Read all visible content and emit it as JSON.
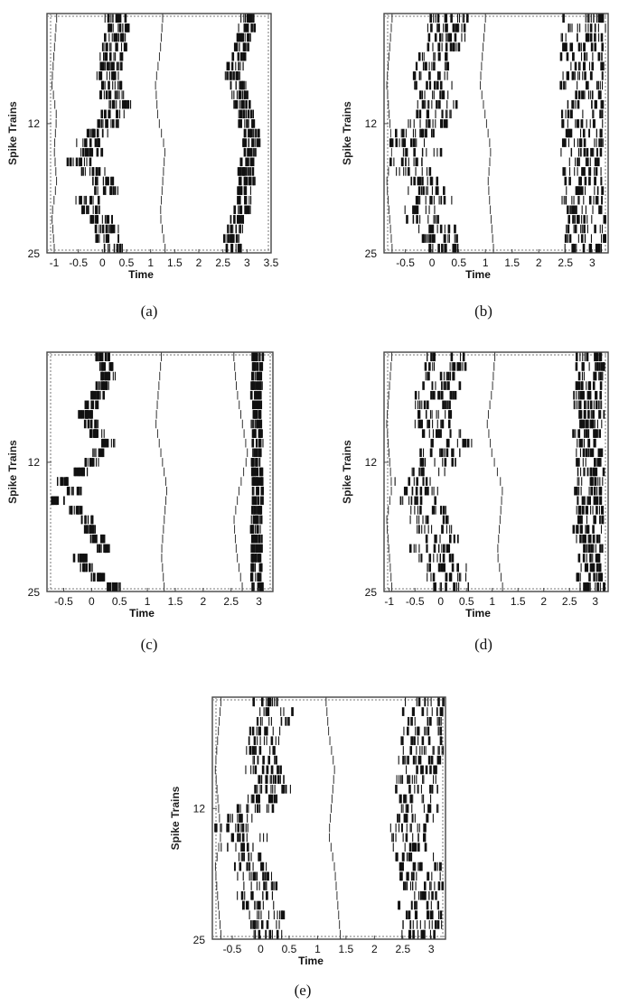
{
  "chart_data": [
    {
      "type": "scatter",
      "panel": "(a)",
      "ylabel": "Spike Trains",
      "xlabel": "Time",
      "xlim": [
        -1.15,
        3.5
      ],
      "ylim": [
        0,
        25
      ],
      "xticks": [
        "-1",
        "-0.5",
        "0",
        "0.5",
        "1",
        "1.5",
        "2",
        "2.5",
        "3",
        "3.5"
      ],
      "yticks": [
        "12",
        "25"
      ],
      "trains": 25,
      "bursts": [
        {
          "center": [
            0.3,
            0.3,
            0.25,
            0.25,
            0.2,
            0.15,
            0.1,
            0.15,
            0.2,
            0.35,
            0.2,
            0.1,
            -0.1,
            -0.3,
            -0.2,
            -0.5,
            -0.2,
            0.0,
            0.1,
            -0.3,
            -0.2,
            0.0,
            0.1,
            0.1,
            0.2
          ],
          "width": 0.5,
          "density": 0.8
        },
        {
          "center": [
            3.0,
            3.0,
            2.9,
            2.9,
            2.8,
            2.75,
            2.7,
            2.8,
            2.85,
            2.9,
            3.0,
            3.0,
            3.1,
            3.1,
            3.05,
            3.0,
            3.0,
            3.0,
            2.95,
            2.95,
            2.9,
            2.8,
            2.75,
            2.7,
            2.75
          ],
          "width": 0.35,
          "density": 0.75
        }
      ],
      "curves": [
        {
          "x": [
            -0.95,
            -1.0,
            -1.05,
            -0.95,
            -1.0,
            -0.95,
            -1.05,
            -1.0
          ]
        },
        {
          "x": [
            1.25,
            1.2,
            1.1,
            1.15,
            1.3,
            1.25,
            1.2,
            1.3
          ]
        }
      ]
    },
    {
      "type": "scatter",
      "panel": "(b)",
      "ylabel": "Spike Trains",
      "xlabel": "Time",
      "xlim": [
        -0.9,
        3.3
      ],
      "ylim": [
        0,
        25
      ],
      "xticks": [
        "-0.5",
        "0",
        "0.5",
        "1",
        "1.5",
        "2",
        "2.5",
        "3"
      ],
      "yticks": [
        "12",
        "25"
      ],
      "trains": 25,
      "bursts": [
        {
          "center": [
            0.3,
            0.25,
            0.3,
            0.2,
            0.1,
            0.05,
            0.0,
            0.0,
            0.05,
            0.1,
            0.0,
            -0.1,
            -0.3,
            -0.5,
            -0.2,
            -0.4,
            -0.3,
            -0.2,
            -0.1,
            0.0,
            -0.3,
            -0.1,
            0.1,
            0.1,
            0.2
          ],
          "width": 0.75,
          "density": 0.7
        },
        {
          "center": [
            2.85,
            2.85,
            2.8,
            2.8,
            2.8,
            2.85,
            2.85,
            2.8,
            2.8,
            2.85,
            2.8,
            2.8,
            2.85,
            2.85,
            2.8,
            2.8,
            2.85,
            2.85,
            2.8,
            2.8,
            2.85,
            2.85,
            2.8,
            2.85,
            2.85
          ],
          "width": 0.8,
          "density": 0.8
        }
      ],
      "curves": [
        {
          "x": [
            -0.75,
            -0.8,
            -0.85,
            -0.8,
            -0.75,
            -0.85,
            -0.8,
            -0.75
          ]
        },
        {
          "x": [
            1.0,
            0.95,
            0.9,
            1.0,
            1.1,
            1.05,
            1.1,
            1.15
          ]
        }
      ]
    },
    {
      "type": "scatter",
      "panel": "(c)",
      "ylabel": "Spike Trains",
      "xlabel": "Time",
      "xlim": [
        -0.8,
        3.25
      ],
      "ylim": [
        0,
        25
      ],
      "xticks": [
        "-0.5",
        "0",
        "0.5",
        "1",
        "1.5",
        "2",
        "2.5",
        "3"
      ],
      "yticks": [
        "12",
        "25"
      ],
      "trains": 25,
      "bursts": [
        {
          "center": [
            0.2,
            0.25,
            0.3,
            0.2,
            0.1,
            0.0,
            -0.1,
            0.0,
            0.1,
            0.3,
            0.1,
            0.0,
            -0.2,
            -0.5,
            -0.3,
            -0.6,
            -0.3,
            -0.1,
            0.0,
            0.1,
            0.2,
            -0.2,
            -0.1,
            0.1,
            0.4
          ],
          "width": 0.25,
          "density": 0.8
        },
        {
          "center": [
            2.98,
            2.98,
            2.97,
            2.97,
            2.96,
            2.96,
            2.95,
            2.96,
            2.97,
            2.98,
            2.98,
            2.97,
            2.97,
            2.97,
            2.98,
            2.98,
            2.97,
            2.96,
            2.95,
            2.96,
            2.97,
            2.97,
            2.96,
            2.96,
            2.97
          ],
          "width": 0.2,
          "density": 0.9
        }
      ],
      "curves": [
        {
          "x": [
            1.25,
            1.2,
            1.15,
            1.25,
            1.35,
            1.3,
            1.25,
            1.3
          ]
        },
        {
          "x": [
            2.55,
            2.6,
            2.7,
            2.8,
            2.65,
            2.55,
            2.6,
            2.7
          ]
        }
      ]
    },
    {
      "type": "scatter",
      "panel": "(d)",
      "ylabel": "Spike Trains",
      "xlabel": "Time",
      "xlim": [
        -1.1,
        3.25
      ],
      "ylim": [
        0,
        25
      ],
      "xticks": [
        "-1",
        "-0.5",
        "0",
        "0.5",
        "1",
        "1.5",
        "2",
        "2.5",
        "3"
      ],
      "yticks": [
        "12",
        "25"
      ],
      "trains": 25,
      "bursts": [
        {
          "center": [
            0.1,
            0.1,
            0.1,
            0.0,
            -0.1,
            -0.1,
            -0.2,
            -0.1,
            0.0,
            0.2,
            0.0,
            -0.1,
            -0.3,
            -0.6,
            -0.4,
            -0.5,
            -0.3,
            -0.2,
            -0.1,
            0.0,
            -0.2,
            -0.1,
            0.1,
            0.1,
            0.2
          ],
          "width": 0.8,
          "density": 0.65
        },
        {
          "center": [
            2.9,
            2.9,
            2.9,
            2.85,
            2.85,
            2.85,
            2.9,
            2.9,
            2.85,
            2.85,
            2.9,
            2.9,
            2.9,
            2.9,
            2.85,
            2.85,
            2.9,
            2.9,
            2.85,
            2.85,
            2.9,
            2.9,
            2.9,
            2.85,
            2.9
          ],
          "width": 0.55,
          "density": 0.85
        }
      ],
      "curves": [
        {
          "x": [
            -0.95,
            -1.0,
            -1.05,
            -1.0,
            -0.95,
            -1.05,
            -1.0,
            -0.95
          ]
        },
        {
          "x": [
            1.05,
            1.0,
            0.9,
            1.0,
            1.2,
            1.15,
            1.1,
            1.2
          ]
        }
      ]
    },
    {
      "type": "scatter",
      "panel": "(e)",
      "ylabel": "Spike Trains",
      "xlabel": "Time",
      "xlim": [
        -0.85,
        3.25
      ],
      "ylim": [
        0,
        25
      ],
      "xticks": [
        "-0.5",
        "0",
        "0.5",
        "1",
        "1.5",
        "2",
        "2.5",
        "3"
      ],
      "yticks": [
        "12",
        "25"
      ],
      "trains": 25,
      "bursts": [
        {
          "center": [
            0.2,
            0.25,
            0.2,
            0.1,
            0.05,
            0.0,
            0.0,
            0.05,
            0.1,
            0.2,
            0.0,
            -0.1,
            -0.3,
            -0.5,
            -0.2,
            -0.4,
            -0.3,
            -0.2,
            -0.1,
            0.0,
            -0.1,
            0.0,
            0.1,
            0.1,
            0.2
          ],
          "width": 0.65,
          "density": 0.65
        },
        {
          "center": [
            2.85,
            2.85,
            2.8,
            2.8,
            2.8,
            2.85,
            2.8,
            2.8,
            2.75,
            2.75,
            2.7,
            2.75,
            2.7,
            2.6,
            2.65,
            2.7,
            2.75,
            2.8,
            2.8,
            2.85,
            2.85,
            2.8,
            2.85,
            2.85,
            2.85
          ],
          "width": 0.75,
          "density": 0.7
        }
      ],
      "curves": [
        {
          "x": [
            -0.7,
            -0.75,
            -0.8,
            -0.75,
            -0.7,
            -0.8,
            -0.75,
            -0.7
          ]
        },
        {
          "x": [
            1.15,
            1.2,
            1.3,
            1.25,
            1.2,
            1.3,
            1.35,
            1.4
          ]
        }
      ]
    }
  ],
  "captions": [
    "(a)",
    "(b)",
    "(c)",
    "(d)",
    "(e)"
  ]
}
